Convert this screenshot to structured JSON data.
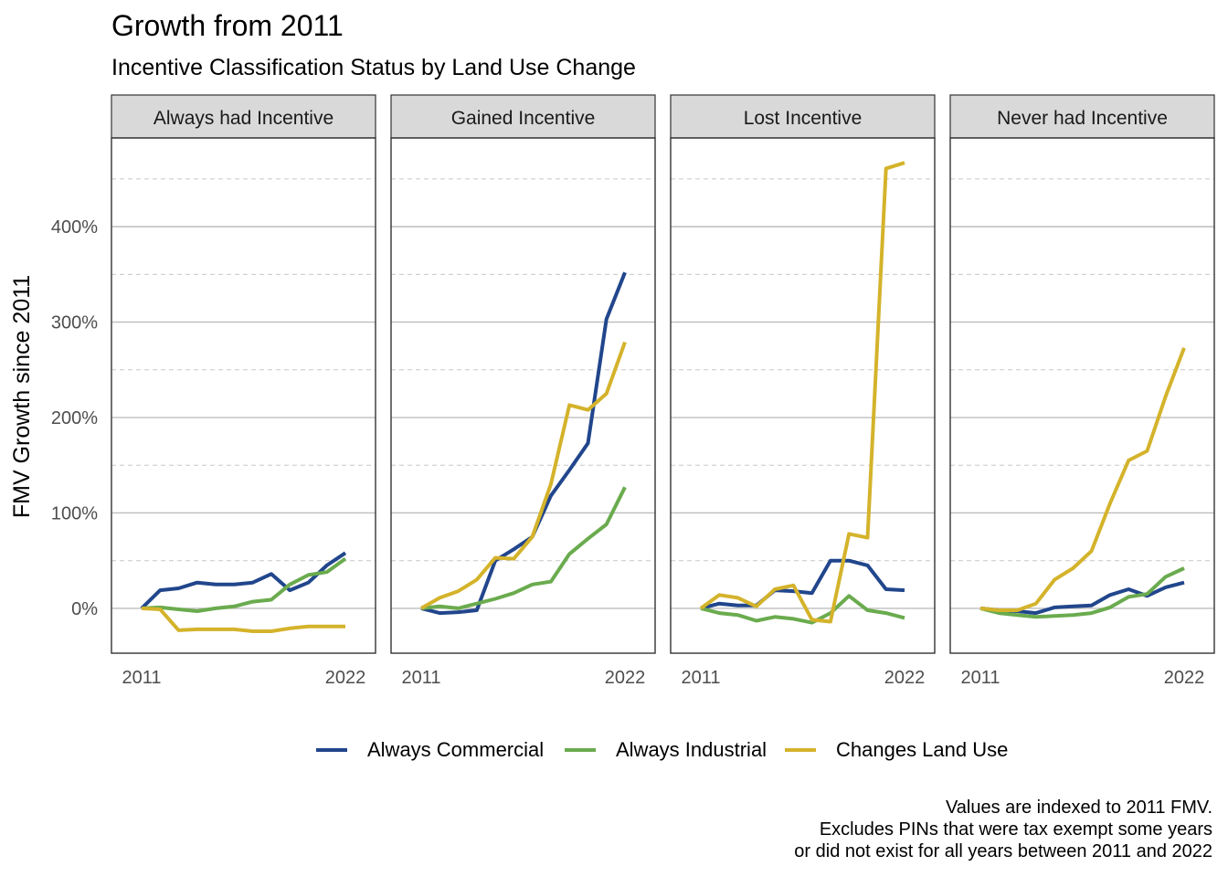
{
  "chart_data": {
    "type": "line",
    "title": "Growth from 2011",
    "subtitle": "Incentive Classification Status by Land Use Change",
    "ylabel": "FMV Growth since 2011",
    "xlabel": "",
    "x": [
      2011,
      2012,
      2013,
      2014,
      2015,
      2016,
      2017,
      2018,
      2019,
      2020,
      2021,
      2022
    ],
    "x_tick_labels": [
      "2011",
      "2022"
    ],
    "y_tick_labels": [
      "0%",
      "100%",
      "200%",
      "300%",
      "400%"
    ],
    "y_ticks": [
      0,
      100,
      200,
      300,
      400
    ],
    "ylim": [
      -47,
      493
    ],
    "grid": true,
    "legend_position": "bottom",
    "series_colors": {
      "Always Commercial": "#21468c",
      "Always Industrial": "#6aab4e",
      "Changes Land Use": "#d4b32b"
    },
    "panels": [
      {
        "title": "Always had Incentive",
        "series": [
          {
            "name": "Always Commercial",
            "values": [
              0,
              19,
              21,
              27,
              25,
              25,
              27,
              36,
              19,
              27,
              45,
              58
            ]
          },
          {
            "name": "Always Industrial",
            "values": [
              0,
              1,
              -1,
              -3,
              0,
              2,
              7,
              9,
              25,
              35,
              38,
              52
            ]
          },
          {
            "name": "Changes Land Use",
            "values": [
              0,
              -1,
              -23,
              -22,
              -22,
              -22,
              -24,
              -24,
              -21,
              -19,
              -19,
              -19
            ]
          }
        ]
      },
      {
        "title": "Gained Incentive",
        "series": [
          {
            "name": "Always Commercial",
            "values": [
              0,
              -5,
              -4,
              -2,
              50,
              62,
              75,
              118,
              145,
              173,
              303,
              352
            ]
          },
          {
            "name": "Always Industrial",
            "values": [
              0,
              2,
              0,
              5,
              10,
              16,
              25,
              28,
              57,
              73,
              88,
              127
            ]
          },
          {
            "name": "Changes Land Use",
            "values": [
              0,
              11,
              18,
              30,
              53,
              52,
              75,
              130,
              213,
              208,
              225,
              279
            ]
          }
        ]
      },
      {
        "title": "Lost Incentive",
        "series": [
          {
            "name": "Always Commercial",
            "values": [
              0,
              5,
              3,
              3,
              19,
              18,
              16,
              50,
              50,
              45,
              20,
              19
            ]
          },
          {
            "name": "Always Industrial",
            "values": [
              0,
              -5,
              -7,
              -13,
              -9,
              -11,
              -15,
              -5,
              13,
              -2,
              -5,
              -10
            ]
          },
          {
            "name": "Changes Land Use",
            "values": [
              0,
              14,
              11,
              2,
              20,
              24,
              -12,
              -14,
              78,
              74,
              461,
              467
            ]
          }
        ]
      },
      {
        "title": "Never had Incentive",
        "series": [
          {
            "name": "Always Commercial",
            "values": [
              0,
              -2,
              -3,
              -5,
              1,
              2,
              3,
              14,
              20,
              13,
              22,
              27
            ]
          },
          {
            "name": "Always Industrial",
            "values": [
              0,
              -5,
              -7,
              -9,
              -8,
              -7,
              -5,
              1,
              12,
              15,
              33,
              42
            ]
          },
          {
            "name": "Changes Land Use",
            "values": [
              0,
              -2,
              -2,
              5,
              30,
              42,
              60,
              110,
              155,
              165,
              222,
              273
            ]
          }
        ]
      }
    ]
  },
  "legend": {
    "items": [
      {
        "label": "Always Commercial",
        "color": "#21468c"
      },
      {
        "label": "Always Industrial",
        "color": "#6aab4e"
      },
      {
        "label": "Changes Land Use",
        "color": "#d4b32b"
      }
    ]
  },
  "caption": {
    "line1": "Values are indexed to 2011 FMV.",
    "line2": "Excludes PINs that were tax exempt some years ",
    "line3": "or did not exist for all years between 2011 and 2022"
  }
}
